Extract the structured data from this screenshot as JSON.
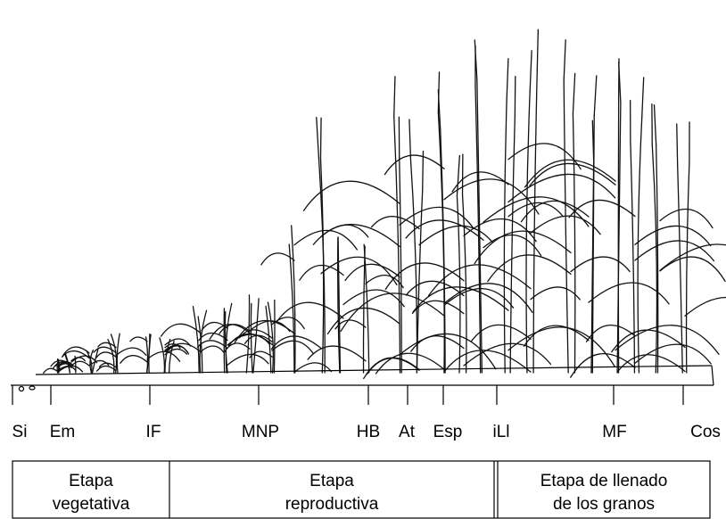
{
  "stages": [
    "Si",
    "Em",
    "IF",
    "MNP",
    "HB",
    "At",
    "Esp",
    "iLl",
    "MF",
    "Cos"
  ],
  "phases": [
    [
      "Etapa",
      "vegetativa"
    ],
    [
      "Etapa",
      "reproductiva"
    ],
    [
      "Etapa de llenado",
      "de los granos"
    ]
  ]
}
